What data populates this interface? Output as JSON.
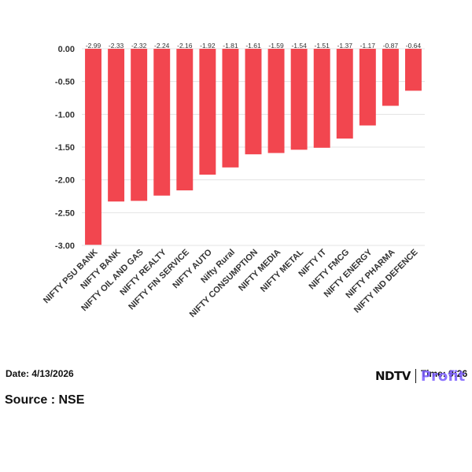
{
  "chart_data": {
    "type": "bar",
    "categories": [
      "NIFTY PSU BANK",
      "NIFTY BANK",
      "NIFTY OIL AND GAS",
      "NIFTY REALTY",
      "NIFTY FIN SERVICE",
      "NIFTY AUTO",
      "Nifty Rural",
      "NIFTY CONSUMPTION",
      "NIFTY MEDIA",
      "NIFTY METAL",
      "NIFTY IT",
      "NIFTY FMCG",
      "NIFTY ENERGY",
      "NIFTY PHARMA",
      "NIFTY IND DEFENCE"
    ],
    "values": [
      -2.99,
      -2.33,
      -2.32,
      -2.24,
      -2.16,
      -1.92,
      -1.81,
      -1.61,
      -1.59,
      -1.54,
      -1.51,
      -1.37,
      -1.17,
      -0.87,
      -0.64
    ],
    "value_labels": [
      "-2.99",
      "-2.33",
      "-2.32",
      "-2.24",
      "-2.16",
      "-1.92",
      "-1.81",
      "-1.61",
      "-1.59",
      "-1.54",
      "-1.51",
      "-1.37",
      "-1.17",
      "-0.87",
      "-0.64"
    ],
    "yticks": [
      "0.00",
      "-0.50",
      "-1.00",
      "-1.50",
      "-2.00",
      "-2.50",
      "-3.00"
    ],
    "ylim": [
      -3.0,
      0.0
    ],
    "grid": true,
    "bar_color": "#f2464f"
  },
  "footer": {
    "date": "Date: 4/13/2026",
    "source": "Source : NSE",
    "time": "Time: 9:26",
    "logo_ndtv": "NDTV",
    "logo_profit": "Profit"
  }
}
